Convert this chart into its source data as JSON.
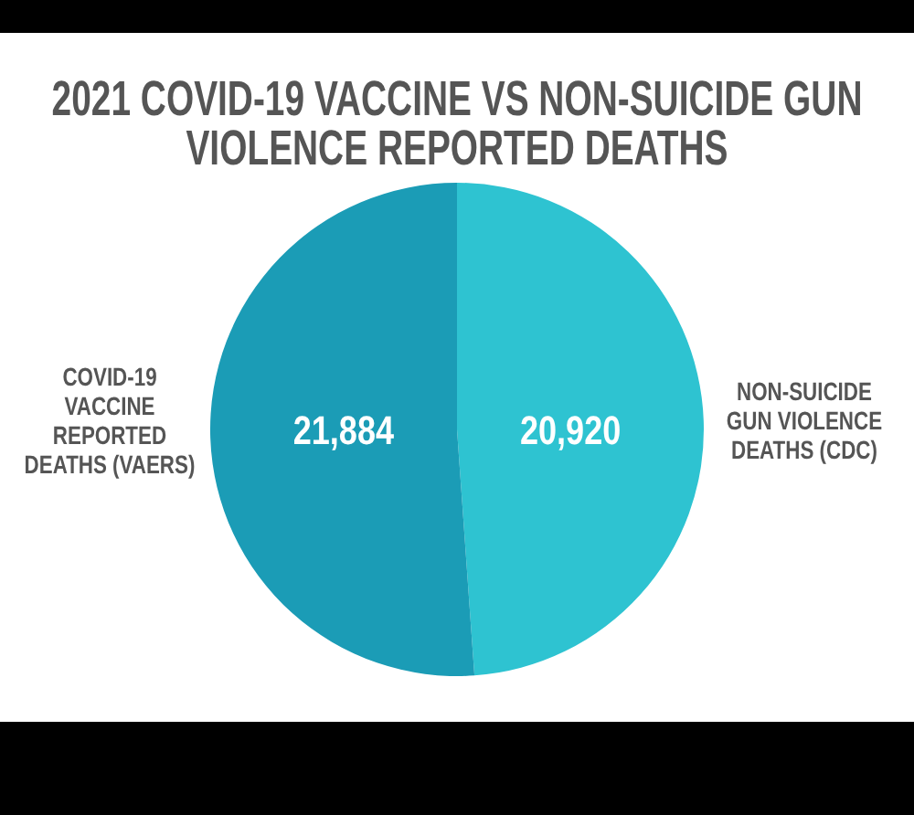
{
  "chart_data": {
    "type": "pie",
    "title": "2021 COVID-19 VACCINE VS NON-SUICIDE GUN VIOLENCE REPORTED DEATHS",
    "categories": [
      "NON-SUICIDE GUN VIOLENCE DEATHS (CDC)",
      "COVID-19 VACCINE REPORTED DEATHS (VAERS)"
    ],
    "values": [
      20920,
      21884
    ],
    "colors": [
      "#2ec3d1",
      "#1b9cb6"
    ],
    "value_labels": [
      "20,920",
      "21,884"
    ]
  }
}
